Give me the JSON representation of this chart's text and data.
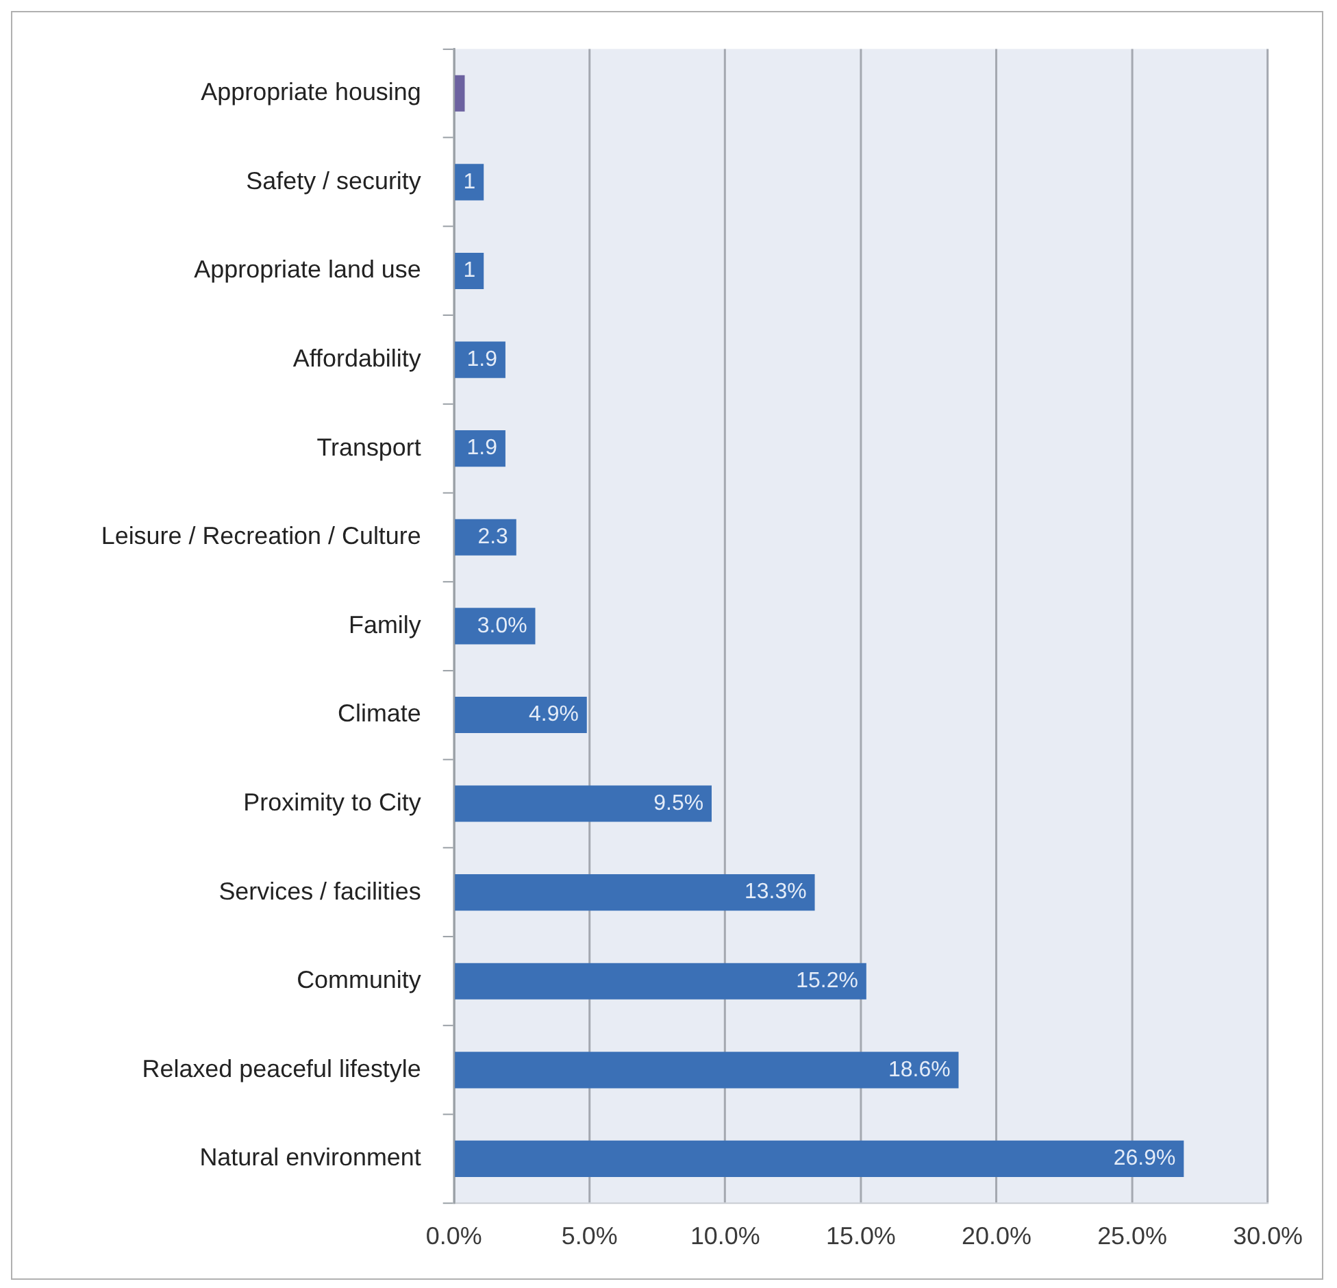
{
  "chart_data": {
    "type": "bar",
    "orientation": "horizontal",
    "categories": [
      "Appropriate housing",
      "Safety / security",
      "Appropriate land use",
      "Affordability",
      "Transport",
      "Leisure / Recreation / Culture",
      "Family",
      "Climate",
      "Proximity to City",
      "Services / facilities",
      "Community",
      "Relaxed peaceful lifestyle",
      "Natural environment"
    ],
    "values": [
      0.4,
      1.1,
      1.1,
      1.9,
      1.9,
      2.3,
      3.0,
      4.9,
      9.5,
      13.3,
      15.2,
      18.6,
      26.9
    ],
    "colors": [
      "#6c62a0",
      "#3b70b6",
      "#3b70b6",
      "#3b70b6",
      "#3b70b6",
      "#3b70b6",
      "#3b70b6",
      "#3b70b6",
      "#3b70b6",
      "#3b70b6",
      "#3b70b6",
      "#3b70b6",
      "#3b70b6"
    ],
    "value_labels": [
      null,
      "1",
      "1",
      "1.9",
      "1.9",
      "2.3",
      "3.0%",
      "4.9%",
      "9.5%",
      "13.3%",
      "15.2%",
      "18.6%",
      "26.9%"
    ],
    "xlim": [
      0,
      30
    ],
    "xticks": [
      {
        "value": 0,
        "label": "0.0%"
      },
      {
        "value": 5,
        "label": "5.0%"
      },
      {
        "value": 10,
        "label": "10.0%"
      },
      {
        "value": 15,
        "label": "15.0%"
      },
      {
        "value": 20,
        "label": "20.0%"
      },
      {
        "value": 25,
        "label": "25.0%"
      },
      {
        "value": 30,
        "label": "30.0%"
      }
    ],
    "grid": "x",
    "legend": false
  }
}
